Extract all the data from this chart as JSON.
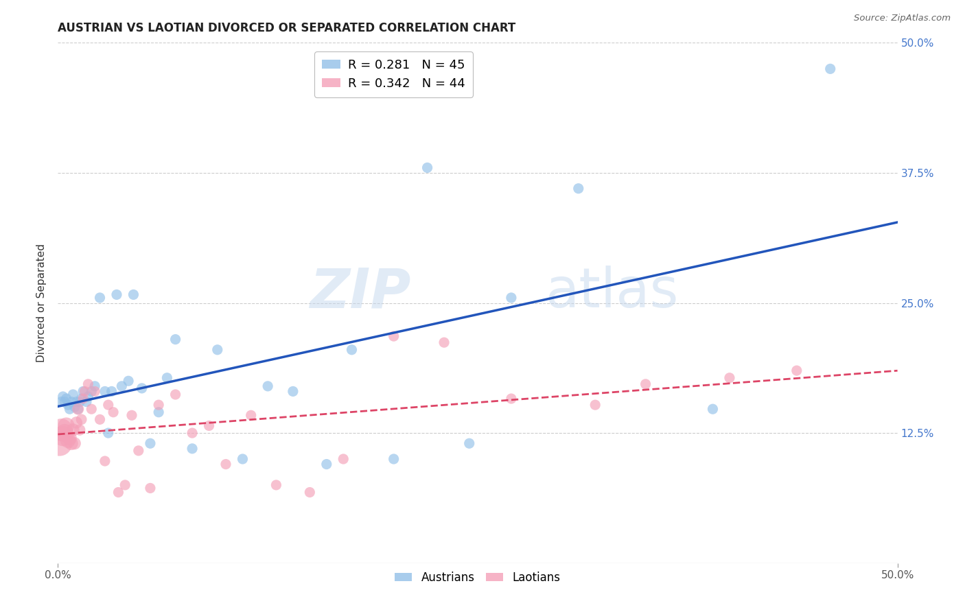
{
  "title": "AUSTRIAN VS LAOTIAN DIVORCED OR SEPARATED CORRELATION CHART",
  "source": "Source: ZipAtlas.com",
  "ylabel": "Divorced or Separated",
  "xlim": [
    0.0,
    0.5
  ],
  "ylim": [
    0.0,
    0.5
  ],
  "ytick_vals": [
    0.125,
    0.25,
    0.375,
    0.5
  ],
  "ytick_labels": [
    "12.5%",
    "25.0%",
    "37.5%",
    "50.0%"
  ],
  "xtick_vals": [
    0.0,
    0.5
  ],
  "xtick_labels": [
    "0.0%",
    "50.0%"
  ],
  "watermark_zip": "ZIP",
  "watermark_atlas": "atlas",
  "blue_color": "#92C0E8",
  "pink_color": "#F4A0B8",
  "blue_line_color": "#2255BB",
  "pink_line_color": "#DD4466",
  "grid_color": "#CCCCCC",
  "background_color": "#FFFFFF",
  "austrians_x": [
    0.002,
    0.003,
    0.004,
    0.005,
    0.006,
    0.007,
    0.008,
    0.009,
    0.01,
    0.011,
    0.012,
    0.013,
    0.014,
    0.015,
    0.017,
    0.018,
    0.02,
    0.022,
    0.025,
    0.028,
    0.03,
    0.032,
    0.035,
    0.038,
    0.042,
    0.045,
    0.05,
    0.055,
    0.06,
    0.065,
    0.07,
    0.08,
    0.095,
    0.11,
    0.125,
    0.14,
    0.16,
    0.175,
    0.2,
    0.22,
    0.245,
    0.27,
    0.31,
    0.39,
    0.46
  ],
  "austrians_y": [
    0.155,
    0.16,
    0.155,
    0.158,
    0.152,
    0.148,
    0.155,
    0.162,
    0.15,
    0.155,
    0.148,
    0.155,
    0.158,
    0.165,
    0.155,
    0.16,
    0.165,
    0.17,
    0.255,
    0.165,
    0.125,
    0.165,
    0.258,
    0.17,
    0.175,
    0.258,
    0.168,
    0.115,
    0.145,
    0.178,
    0.215,
    0.11,
    0.205,
    0.1,
    0.17,
    0.165,
    0.095,
    0.205,
    0.1,
    0.38,
    0.115,
    0.255,
    0.36,
    0.148,
    0.475
  ],
  "austrians_s": [
    60,
    60,
    60,
    60,
    60,
    60,
    60,
    60,
    60,
    60,
    60,
    60,
    60,
    60,
    60,
    60,
    60,
    60,
    60,
    60,
    60,
    60,
    60,
    60,
    60,
    60,
    60,
    60,
    60,
    60,
    60,
    60,
    60,
    60,
    60,
    60,
    60,
    60,
    60,
    60,
    60,
    60,
    60,
    60,
    60
  ],
  "laotians_x": [
    0.001,
    0.002,
    0.003,
    0.004,
    0.005,
    0.006,
    0.007,
    0.008,
    0.009,
    0.01,
    0.011,
    0.012,
    0.013,
    0.014,
    0.015,
    0.016,
    0.018,
    0.02,
    0.022,
    0.025,
    0.028,
    0.03,
    0.033,
    0.036,
    0.04,
    0.044,
    0.048,
    0.055,
    0.06,
    0.07,
    0.08,
    0.09,
    0.1,
    0.115,
    0.13,
    0.15,
    0.17,
    0.2,
    0.23,
    0.27,
    0.32,
    0.35,
    0.4,
    0.44
  ],
  "laotians_y": [
    0.115,
    0.128,
    0.122,
    0.125,
    0.132,
    0.118,
    0.12,
    0.115,
    0.128,
    0.115,
    0.135,
    0.148,
    0.128,
    0.138,
    0.158,
    0.165,
    0.172,
    0.148,
    0.165,
    0.138,
    0.098,
    0.152,
    0.145,
    0.068,
    0.075,
    0.142,
    0.108,
    0.072,
    0.152,
    0.162,
    0.125,
    0.132,
    0.095,
    0.142,
    0.075,
    0.068,
    0.1,
    0.218,
    0.212,
    0.158,
    0.152,
    0.172,
    0.178,
    0.185
  ],
  "laotians_s": [
    350,
    280,
    220,
    180,
    150,
    130,
    110,
    100,
    90,
    85,
    80,
    75,
    70,
    65,
    60,
    60,
    60,
    60,
    60,
    60,
    60,
    60,
    60,
    60,
    60,
    60,
    60,
    60,
    60,
    60,
    60,
    60,
    60,
    60,
    60,
    60,
    60,
    60,
    60,
    60,
    60,
    60,
    60,
    60
  ]
}
